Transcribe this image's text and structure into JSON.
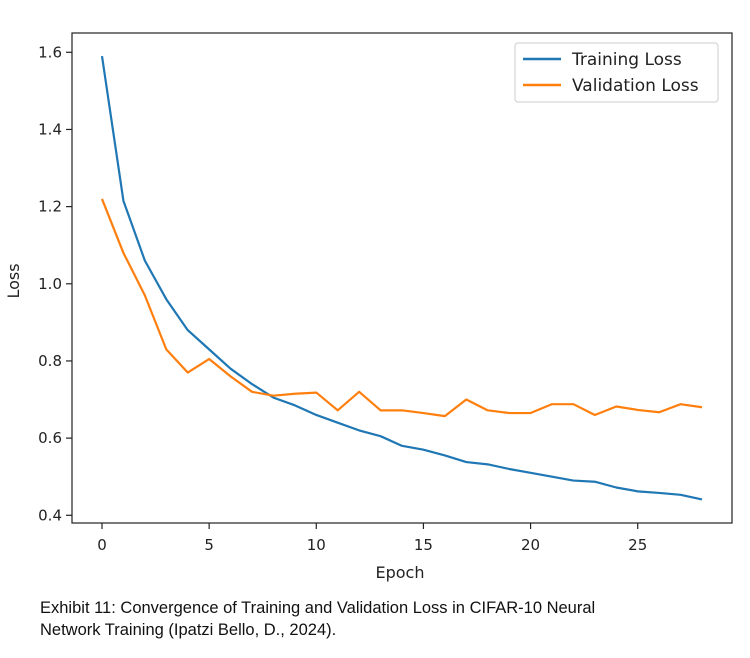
{
  "chart_data": {
    "type": "line",
    "xlabel": "Epoch",
    "ylabel": "Loss",
    "xlim": [
      -1.4,
      29.4
    ],
    "ylim": [
      0.38,
      1.65
    ],
    "x_ticks": [
      0,
      5,
      10,
      15,
      20,
      25
    ],
    "y_ticks": [
      0.4,
      0.6,
      0.8,
      1.0,
      1.2,
      1.4,
      1.6
    ],
    "y_tick_labels": [
      "0.4",
      "0.6",
      "0.8",
      "1.0",
      "1.2",
      "1.4",
      "1.6"
    ],
    "grid": false,
    "legend_position": "top-right",
    "x": [
      0,
      1,
      2,
      3,
      4,
      5,
      6,
      7,
      8,
      9,
      10,
      11,
      12,
      13,
      14,
      15,
      16,
      17,
      18,
      19,
      20,
      21,
      22,
      23,
      24,
      25,
      26,
      27,
      28
    ],
    "series": [
      {
        "name": "Training Loss",
        "color": "#1f77b4",
        "values": [
          1.59,
          1.215,
          1.06,
          0.96,
          0.88,
          0.83,
          0.78,
          0.74,
          0.705,
          0.685,
          0.66,
          0.64,
          0.62,
          0.605,
          0.58,
          0.57,
          0.555,
          0.538,
          0.532,
          0.52,
          0.51,
          0.5,
          0.49,
          0.487,
          0.472,
          0.462,
          0.458,
          0.453,
          0.441
        ]
      },
      {
        "name": "Validation Loss",
        "color": "#ff7f0e",
        "values": [
          1.22,
          1.08,
          0.97,
          0.83,
          0.77,
          0.805,
          0.76,
          0.72,
          0.71,
          0.715,
          0.718,
          0.672,
          0.72,
          0.672,
          0.672,
          0.665,
          0.657,
          0.7,
          0.672,
          0.665,
          0.665,
          0.688,
          0.688,
          0.66,
          0.682,
          0.673,
          0.667,
          0.688,
          0.68
        ]
      }
    ]
  },
  "caption": {
    "line1": "Exhibit 11: Convergence of Training and Validation Loss in CIFAR-10 Neural",
    "line2": "Network Training (Ipatzi Bello, D., 2024)."
  }
}
